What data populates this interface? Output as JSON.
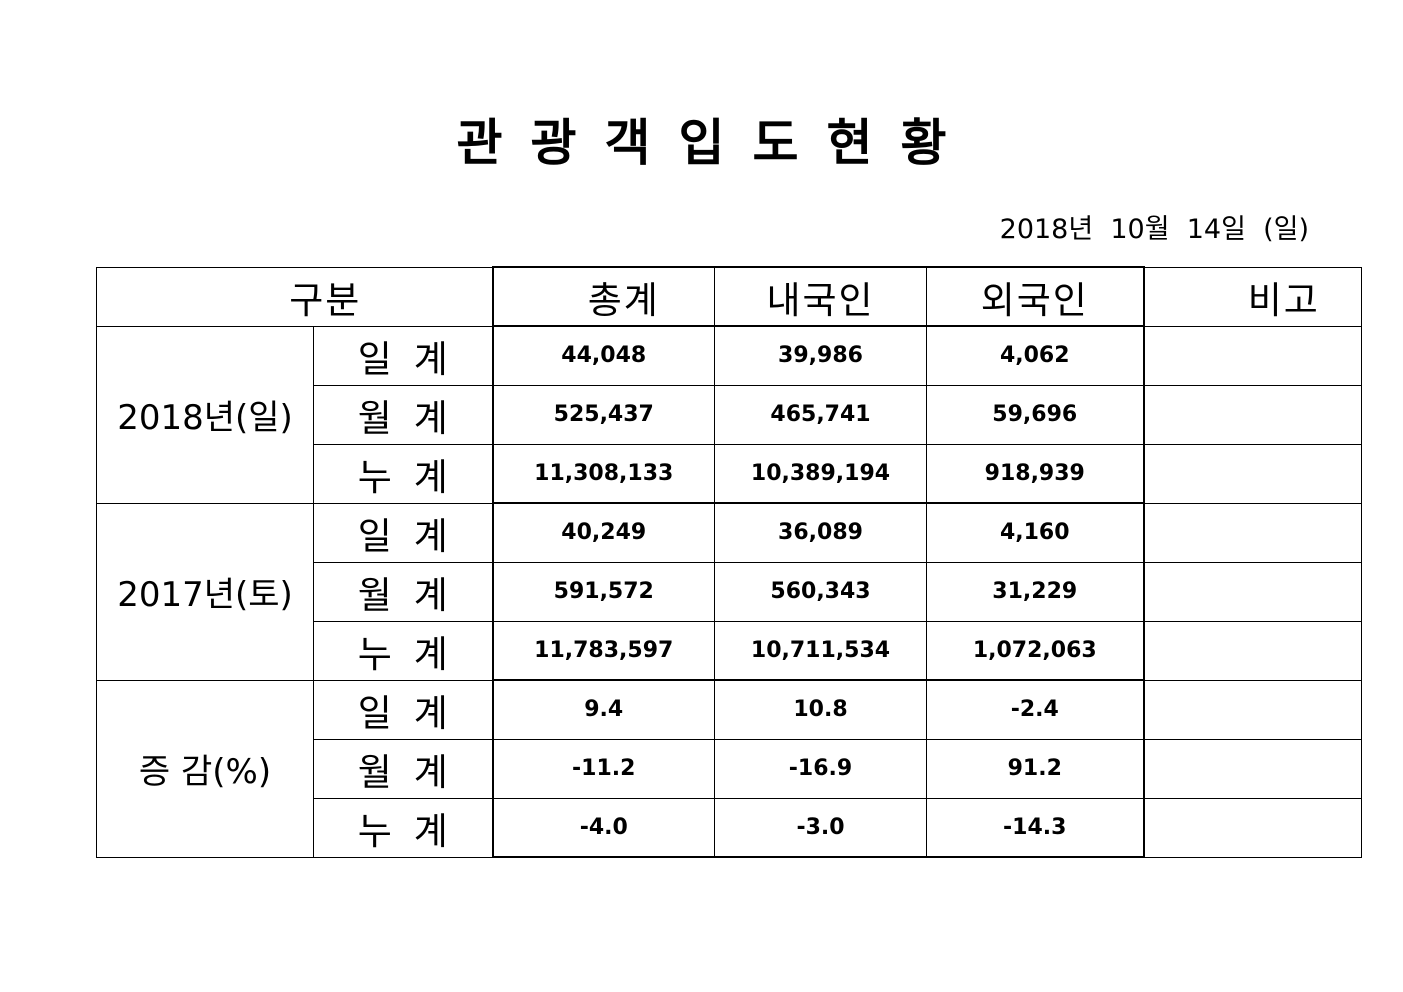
{
  "title": "관광객입도현황",
  "date": "2018년  10월  14일  (일)",
  "headers": {
    "category": "구분",
    "total": "총계",
    "domestic": "내국인",
    "foreign": "외국인",
    "note": "비고"
  },
  "groups": [
    {
      "label": "2018년(일)",
      "rows": [
        {
          "label": "일계",
          "total": "44,048",
          "domestic": "39,986",
          "foreign": "4,062",
          "note": ""
        },
        {
          "label": "월계",
          "total": "525,437",
          "domestic": "465,741",
          "foreign": "59,696",
          "note": ""
        },
        {
          "label": "누계",
          "total": "11,308,133",
          "domestic": "10,389,194",
          "foreign": "918,939",
          "note": ""
        }
      ]
    },
    {
      "label": "2017년(토)",
      "rows": [
        {
          "label": "일계",
          "total": "40,249",
          "domestic": "36,089",
          "foreign": "4,160",
          "note": ""
        },
        {
          "label": "월계",
          "total": "591,572",
          "domestic": "560,343",
          "foreign": "31,229",
          "note": ""
        },
        {
          "label": "누계",
          "total": "11,783,597",
          "domestic": "10,711,534",
          "foreign": "1,072,063",
          "note": ""
        }
      ]
    },
    {
      "label": "증 감(%)",
      "rows": [
        {
          "label": "일계",
          "total": "9.4",
          "domestic": "10.8",
          "foreign": "-2.4",
          "note": ""
        },
        {
          "label": "월계",
          "total": "-11.2",
          "domestic": "-16.9",
          "foreign": "91.2",
          "note": ""
        },
        {
          "label": "누계",
          "total": "-4.0",
          "domestic": "-3.0",
          "foreign": "-14.3",
          "note": ""
        }
      ]
    }
  ]
}
